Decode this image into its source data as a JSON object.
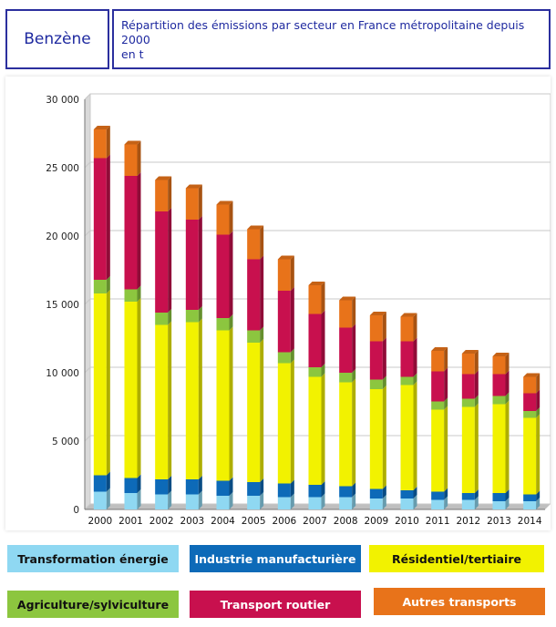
{
  "header": {
    "substance": "Benzène",
    "title_line1": "Répartition des émissions par secteur en France métropolitaine depuis 2000",
    "title_line2": "en t"
  },
  "colors": {
    "header_border": "#2b2f9e",
    "header_text": "#1f2aa0",
    "grid": "#c8c8c8"
  },
  "chart_data": {
    "type": "bar",
    "stacked": true,
    "ylim": [
      0,
      30000
    ],
    "yticks": [
      "0",
      "5 000",
      "10 000",
      "15 000",
      "20 000",
      "25 000",
      "30 000"
    ],
    "ytick_values": [
      0,
      5000,
      10000,
      15000,
      20000,
      25000,
      30000
    ],
    "categories": [
      "2000",
      "2001",
      "2002",
      "2003",
      "2004",
      "2005",
      "2006",
      "2007",
      "2008",
      "2009",
      "2010",
      "2011",
      "2012",
      "2013",
      "2014"
    ],
    "grid": true,
    "legend_position": "bottom",
    "series": [
      {
        "name": "Transformation énergie",
        "color": "#8fd8f2",
        "values": [
          1300,
          1200,
          1100,
          1100,
          1000,
          1000,
          900,
          900,
          900,
          800,
          800,
          700,
          700,
          600,
          600
        ]
      },
      {
        "name": "Industrie manufacturière",
        "color": "#0d6ab8",
        "values": [
          1200,
          1100,
          1100,
          1100,
          1100,
          1000,
          1000,
          900,
          800,
          700,
          600,
          600,
          500,
          600,
          500
        ]
      },
      {
        "name": "Résidentiel/tertiaire",
        "color": "#f2f200",
        "values": [
          13300,
          12900,
          11300,
          11500,
          11000,
          10200,
          8800,
          7900,
          7600,
          7300,
          7700,
          6000,
          6300,
          6500,
          5600
        ]
      },
      {
        "name": "Agriculture/sylviculture",
        "color": "#8cc63f",
        "values": [
          1000,
          900,
          900,
          900,
          900,
          900,
          800,
          700,
          700,
          700,
          600,
          600,
          600,
          600,
          500
        ]
      },
      {
        "name": "Transport routier",
        "color": "#c8104e",
        "values": [
          8900,
          8300,
          7400,
          6600,
          6100,
          5200,
          4500,
          3900,
          3300,
          2800,
          2600,
          2200,
          1800,
          1600,
          1300
        ]
      },
      {
        "name": "Autres transports",
        "color": "#e8731a",
        "values": [
          2100,
          2300,
          2300,
          2300,
          2200,
          2200,
          2300,
          2100,
          2000,
          1900,
          1800,
          1500,
          1500,
          1300,
          1200
        ]
      }
    ]
  }
}
